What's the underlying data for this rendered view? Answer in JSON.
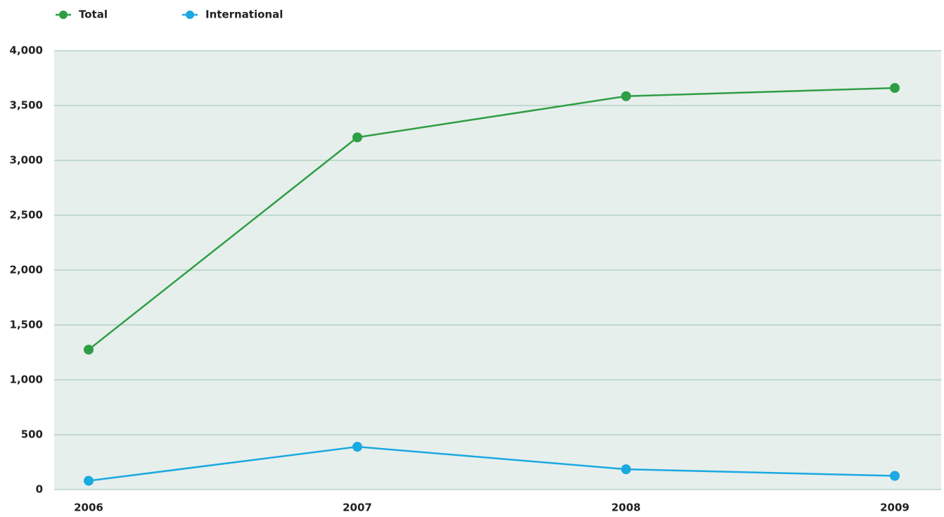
{
  "chart_data": {
    "type": "line",
    "categories": [
      "2006",
      "2007",
      "2008",
      "2009"
    ],
    "series": [
      {
        "name": "Total",
        "color": "#2e9e44",
        "values": [
          1275,
          3210,
          3585,
          3660
        ]
      },
      {
        "name": "International",
        "color": "#1aa9e0",
        "values": [
          80,
          390,
          185,
          125
        ]
      }
    ],
    "ylim": [
      0,
      4000
    ],
    "yticks": [
      0,
      500,
      {
        "value": 1000,
        "label": "1,000"
      },
      {
        "value": 1500,
        "label": "1,500"
      },
      {
        "value": 2000,
        "label": "2,000"
      },
      {
        "value": 2500,
        "label": "2,500"
      },
      {
        "value": 3000,
        "label": "3,000"
      },
      {
        "value": 3500,
        "label": "3,500"
      },
      {
        "value": 4000,
        "label": "4,000"
      }
    ],
    "grid": true,
    "legend": "top-left"
  }
}
